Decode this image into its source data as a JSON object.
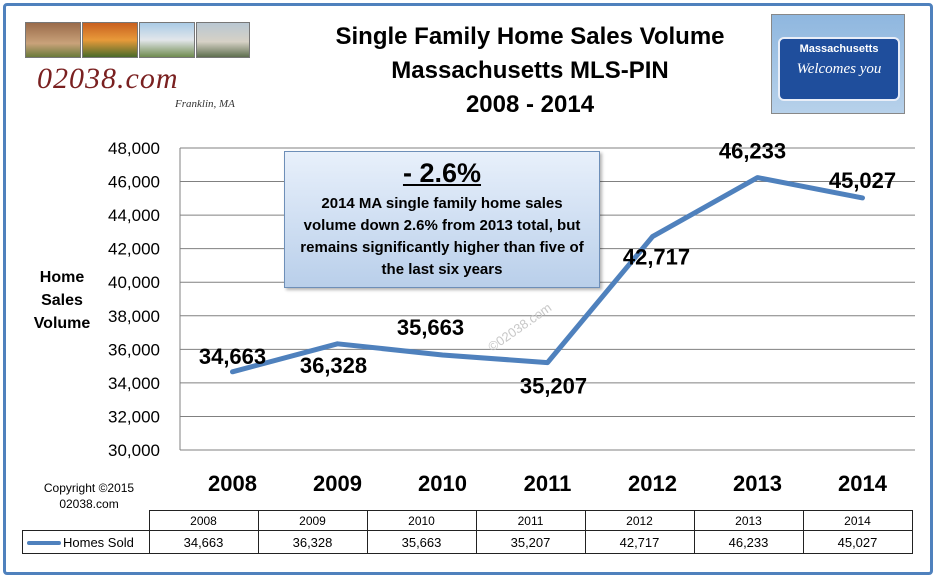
{
  "header": {
    "title_lines": [
      "Single Family Home Sales Volume",
      "Massachusetts  MLS-PIN",
      "2008 - 2014"
    ],
    "logo_text": "02038.com",
    "logo_subtitle": "Franklin, MA",
    "sign_top": "Massachusetts",
    "sign_bottom": "Welcomes you"
  },
  "callout": {
    "headline": "- 2.6%",
    "text": "2014 MA single family home sales volume down 2.6% from 2013 total, but remains significantly higher than five of  the last six years"
  },
  "watermark": "©02038.com",
  "copyright": {
    "line1": "Copyright ©2015",
    "line2": "02038.com"
  },
  "colors": {
    "series": "#4f81bd",
    "frame": "#4f81bd",
    "grid": "#808080"
  },
  "chart_data": {
    "type": "line",
    "title": "Single Family Home Sales Volume Massachusetts  MLS-PIN 2008 - 2014",
    "ylabel": "Home Sales Volume",
    "ylabel_lines": [
      "Home",
      "Sales",
      "Volume"
    ],
    "xlabel": "",
    "categories": [
      "2008",
      "2009",
      "2010",
      "2011",
      "2012",
      "2013",
      "2014"
    ],
    "ylim": [
      30000,
      48000
    ],
    "yticks": [
      "30,000",
      "32,000",
      "34,000",
      "36,000",
      "38,000",
      "40,000",
      "42,000",
      "44,000",
      "46,000",
      "48,000"
    ],
    "grid": true,
    "series": [
      {
        "name": "Homes Sold",
        "values": [
          34663,
          36328,
          35663,
          35207,
          42717,
          46233,
          45027
        ],
        "labels": [
          "34,663",
          "36,328",
          "35,663",
          "35,207",
          "42,717",
          "46,233",
          "45,027"
        ]
      }
    ]
  }
}
